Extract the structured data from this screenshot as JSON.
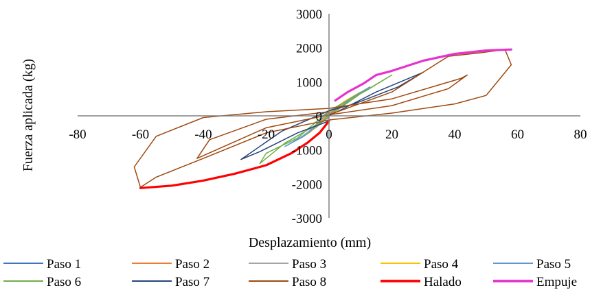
{
  "chart_data": {
    "type": "line",
    "title": "",
    "xlabel": "Desplazamiento (mm)",
    "ylabel": "Fuerza aplicada  (kg)",
    "xlim": [
      -80,
      80
    ],
    "ylim": [
      -3000,
      3000
    ],
    "x_ticks": [
      "-80",
      "-60",
      "-40",
      "-20",
      "0",
      "20",
      "40",
      "60",
      "80"
    ],
    "y_ticks": [
      "3000",
      "2000",
      "1000",
      "0",
      "-1000",
      "-2000",
      "-3000"
    ],
    "grid": false,
    "legend_position": "bottom",
    "series": [
      {
        "name": "Paso 1",
        "color": "#4472C4",
        "width": 1.5,
        "points": [
          [
            0,
            0
          ],
          [
            2,
            150
          ],
          [
            4,
            280
          ],
          [
            2,
            180
          ],
          [
            0,
            30
          ],
          [
            -2,
            -120
          ],
          [
            -4,
            -260
          ],
          [
            -2,
            -160
          ],
          [
            0,
            0
          ]
        ]
      },
      {
        "name": "Paso 2",
        "color": "#ED7D31",
        "width": 1.5,
        "points": [
          [
            0,
            0
          ],
          [
            3,
            230
          ],
          [
            6,
            400
          ],
          [
            3,
            270
          ],
          [
            0,
            60
          ],
          [
            -3,
            -200
          ],
          [
            -6,
            -380
          ],
          [
            -3,
            -250
          ],
          [
            0,
            0
          ]
        ]
      },
      {
        "name": "Paso 3",
        "color": "#A5A5A5",
        "width": 1.5,
        "points": [
          [
            0,
            0
          ],
          [
            4,
            300
          ],
          [
            8,
            560
          ],
          [
            4,
            350
          ],
          [
            0,
            80
          ],
          [
            -4,
            -300
          ],
          [
            -8,
            -560
          ],
          [
            -4,
            -340
          ],
          [
            0,
            0
          ]
        ]
      },
      {
        "name": "Paso 4",
        "color": "#FFC000",
        "width": 1.5,
        "points": [
          [
            0,
            0
          ],
          [
            5,
            380
          ],
          [
            10,
            700
          ],
          [
            5,
            430
          ],
          [
            0,
            100
          ],
          [
            -5,
            -380
          ],
          [
            -10,
            -700
          ],
          [
            -6,
            -480
          ],
          [
            0,
            0
          ]
        ]
      },
      {
        "name": "Paso 5",
        "color": "#5B9BD5",
        "width": 1.5,
        "points": [
          [
            0,
            0
          ],
          [
            7,
            500
          ],
          [
            13,
            850
          ],
          [
            7,
            520
          ],
          [
            0,
            120
          ],
          [
            -7,
            -520
          ],
          [
            -14,
            -900
          ],
          [
            -8,
            -600
          ],
          [
            0,
            -20
          ]
        ]
      },
      {
        "name": "Paso 6",
        "color": "#70AD47",
        "width": 1.5,
        "points": [
          [
            0,
            0
          ],
          [
            10,
            650
          ],
          [
            20,
            1200
          ],
          [
            12,
            750
          ],
          [
            0,
            150
          ],
          [
            -10,
            -650
          ],
          [
            -20,
            -1100
          ],
          [
            -22,
            -1400
          ],
          [
            -14,
            -800
          ],
          [
            0,
            -50
          ]
        ]
      },
      {
        "name": "Paso 7",
        "color": "#264478",
        "width": 1.5,
        "points": [
          [
            0,
            0
          ],
          [
            15,
            700
          ],
          [
            30,
            1280
          ],
          [
            22,
            850
          ],
          [
            8,
            350
          ],
          [
            0,
            150
          ],
          [
            -15,
            -450
          ],
          [
            -28,
            -1280
          ],
          [
            -22,
            -1050
          ],
          [
            -10,
            -500
          ],
          [
            0,
            -150
          ]
        ]
      },
      {
        "name": "Paso 8",
        "color": "#9E480E",
        "width": 1.5,
        "points": [
          [
            0,
            30
          ],
          [
            20,
            700
          ],
          [
            38,
            1750
          ],
          [
            48,
            1850
          ],
          [
            56,
            1950
          ],
          [
            58,
            1500
          ],
          [
            50,
            600
          ],
          [
            40,
            350
          ],
          [
            20,
            80
          ],
          [
            0,
            -120
          ],
          [
            -20,
            -500
          ],
          [
            -40,
            -1250
          ],
          [
            -55,
            -1800
          ],
          [
            -60,
            -2100
          ],
          [
            -62,
            -1500
          ],
          [
            -55,
            -600
          ],
          [
            -40,
            -50
          ],
          [
            -20,
            120
          ],
          [
            0,
            220
          ],
          [
            20,
            500
          ],
          [
            42,
            1100
          ],
          [
            44,
            1200
          ],
          [
            38,
            800
          ],
          [
            20,
            300
          ],
          [
            0,
            30
          ],
          [
            -20,
            -350
          ],
          [
            -42,
            -1250
          ],
          [
            -38,
            -700
          ],
          [
            -20,
            -100
          ],
          [
            0,
            120
          ]
        ]
      },
      {
        "name": "Halado",
        "color": "#FF0000",
        "width": 3.2,
        "points": [
          [
            0,
            -150
          ],
          [
            -3,
            -500
          ],
          [
            -7,
            -800
          ],
          [
            -12,
            -1100
          ],
          [
            -20,
            -1450
          ],
          [
            -30,
            -1700
          ],
          [
            -40,
            -1900
          ],
          [
            -50,
            -2050
          ],
          [
            -60,
            -2120
          ]
        ]
      },
      {
        "name": "Empuje",
        "color": "#E633CC",
        "width": 3.2,
        "points": [
          [
            2,
            450
          ],
          [
            6,
            700
          ],
          [
            11,
            950
          ],
          [
            15,
            1200
          ],
          [
            20,
            1320
          ],
          [
            30,
            1620
          ],
          [
            40,
            1820
          ],
          [
            50,
            1920
          ],
          [
            58,
            1950
          ]
        ]
      }
    ]
  }
}
